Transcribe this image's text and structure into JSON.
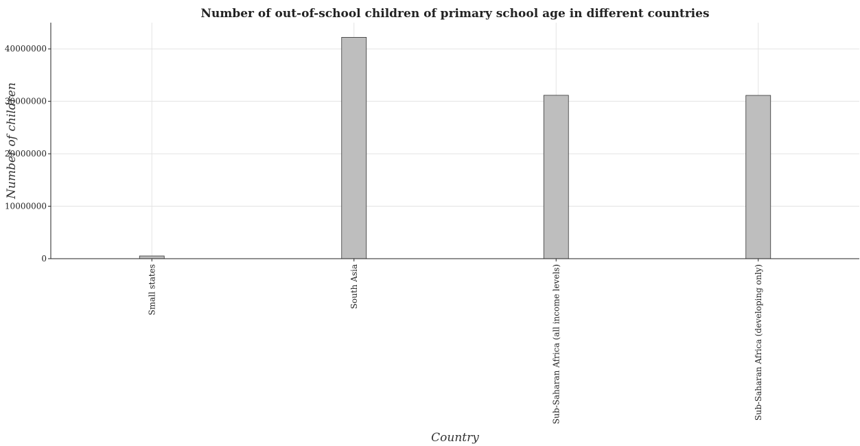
{
  "chart_data": {
    "type": "bar",
    "title": "Number of out-of-school children of primary school age in different countries",
    "xlabel": "Country",
    "ylabel": "Number of children",
    "categories": [
      "Small states",
      "South Asia",
      "Sub-Saharan Africa (all income levels)",
      "Sub-Saharan Africa (developing only)"
    ],
    "values": [
      520000,
      42200000,
      31150000,
      31130000
    ],
    "ylim": [
      0,
      45000000
    ],
    "yticks": [
      0,
      10000000,
      20000000,
      30000000,
      40000000
    ],
    "ytick_labels": [
      "0",
      "10000000",
      "20000000",
      "30000000",
      "40000000"
    ],
    "grid": true,
    "legend": "none",
    "bar_color": "#bebebe"
  }
}
